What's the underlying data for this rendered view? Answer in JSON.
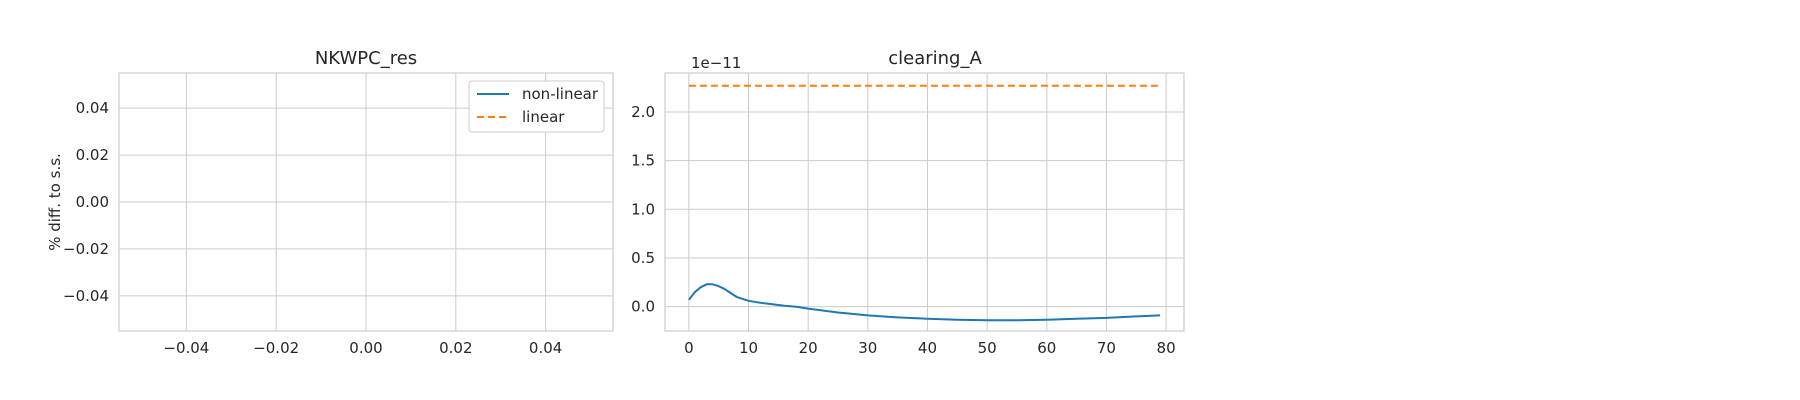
{
  "chart_data": [
    {
      "type": "line",
      "title": "NKWPC_res",
      "xlabel": "",
      "ylabel": "% diff. to s.s.",
      "xlim": [
        -0.055,
        0.055
      ],
      "ylim": [
        -0.055,
        0.055
      ],
      "xticks": [
        -0.04,
        -0.02,
        0.0,
        0.02,
        0.04
      ],
      "xtick_labels": [
        "−0.04",
        "−0.02",
        "0.00",
        "0.02",
        "0.04"
      ],
      "yticks": [
        0.04,
        0.02,
        0.0,
        -0.02,
        -0.04
      ],
      "ytick_labels": [
        "0.04",
        "0.02",
        "0.00",
        "−0.02",
        "−0.04"
      ],
      "grid": true,
      "legend": {
        "placement": "upper-right",
        "entries": [
          {
            "label": "non-linear",
            "color": "#1f77b4",
            "style": "solid"
          },
          {
            "label": "linear",
            "color": "#ff7f0e",
            "style": "dashed"
          }
        ]
      },
      "series": []
    },
    {
      "type": "line",
      "title": "clearing_A",
      "xlabel": "",
      "ylabel": "",
      "offset_text": "1e−11",
      "xlim": [
        -4,
        83
      ],
      "ylim": [
        -0.25,
        2.4
      ],
      "xticks": [
        0,
        10,
        20,
        30,
        40,
        50,
        60,
        70,
        80
      ],
      "xtick_labels": [
        "0",
        "10",
        "20",
        "30",
        "40",
        "50",
        "60",
        "70",
        "80"
      ],
      "yticks": [
        0.0,
        0.5,
        1.0,
        1.5,
        2.0
      ],
      "ytick_labels": [
        "0.0",
        "0.5",
        "1.0",
        "1.5",
        "2.0"
      ],
      "grid": true,
      "series": [
        {
          "name": "non-linear",
          "color": "#1f77b4",
          "style": "solid",
          "x": [
            0,
            1,
            2,
            3,
            4,
            5,
            6,
            7,
            8,
            9,
            10,
            12,
            14,
            16,
            18,
            20,
            25,
            30,
            35,
            40,
            45,
            50,
            55,
            60,
            65,
            70,
            75,
            79
          ],
          "y": [
            0.07,
            0.15,
            0.2,
            0.23,
            0.23,
            0.21,
            0.18,
            0.14,
            0.1,
            0.08,
            0.06,
            0.04,
            0.025,
            0.01,
            0.0,
            -0.02,
            -0.06,
            -0.09,
            -0.11,
            -0.125,
            -0.135,
            -0.14,
            -0.14,
            -0.135,
            -0.125,
            -0.115,
            -0.1,
            -0.09
          ]
        },
        {
          "name": "linear",
          "color": "#ff7f0e",
          "style": "dashed",
          "x": [
            0,
            79
          ],
          "y": [
            2.27,
            2.27
          ]
        }
      ]
    }
  ]
}
